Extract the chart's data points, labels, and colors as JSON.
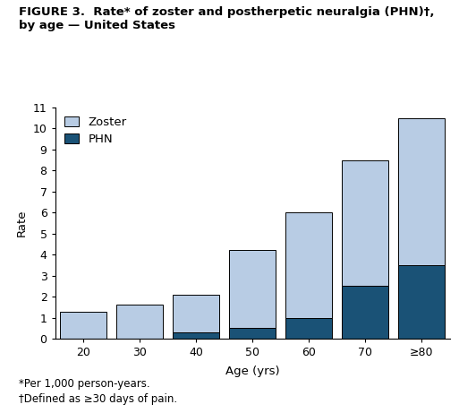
{
  "categories": [
    "20",
    "30",
    "40",
    "50",
    "60",
    "70",
    "≥80"
  ],
  "zoster_total": [
    1.3,
    1.6,
    2.1,
    4.2,
    6.0,
    8.5,
    10.5
  ],
  "phn_values": [
    0.0,
    0.0,
    0.3,
    0.5,
    1.0,
    2.5,
    3.5
  ],
  "zoster_color": "#b8cce4",
  "phn_color": "#1a5276",
  "bar_edge_color": "#000000",
  "bar_width": 0.82,
  "ylim": [
    0,
    11
  ],
  "yticks": [
    0,
    1,
    2,
    3,
    4,
    5,
    6,
    7,
    8,
    9,
    10,
    11
  ],
  "ylabel": "Rate",
  "xlabel": "Age (yrs)",
  "title_line1": "FIGURE 3.  Rate* of zoster and postherpetic neuralgia (PHN)",
  "title_dagger": "†",
  "title_line2": "by age — United States",
  "legend_zoster": "Zoster",
  "legend_phn": "PHN",
  "footnote1": "*Per 1,000 person-years.",
  "footnote2": "†Defined as ≥30 days of pain.",
  "title_fontsize": 9.5,
  "axis_fontsize": 9.5,
  "tick_fontsize": 9,
  "legend_fontsize": 9.5,
  "footnote_fontsize": 8.5,
  "background_color": "#ffffff"
}
